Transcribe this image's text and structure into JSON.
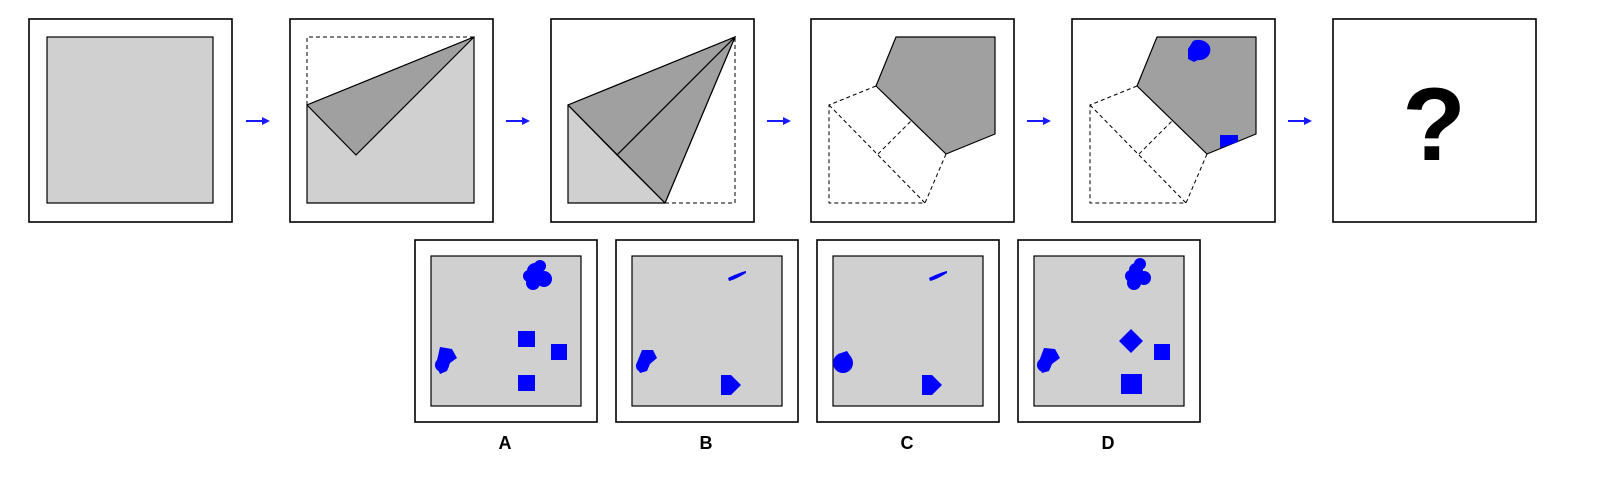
{
  "colors": {
    "paper": "#d0d0d0",
    "folded_flap": "#a0a0a0",
    "punch_hole": "#0000ff",
    "arrow": "#1a1aff",
    "frame": "#000000"
  },
  "sequence": {
    "steps": 5,
    "unknown_panel": {
      "symbol": "?"
    }
  },
  "options": [
    {
      "label": "A"
    },
    {
      "label": "B"
    },
    {
      "label": "C"
    },
    {
      "label": "D"
    }
  ]
}
